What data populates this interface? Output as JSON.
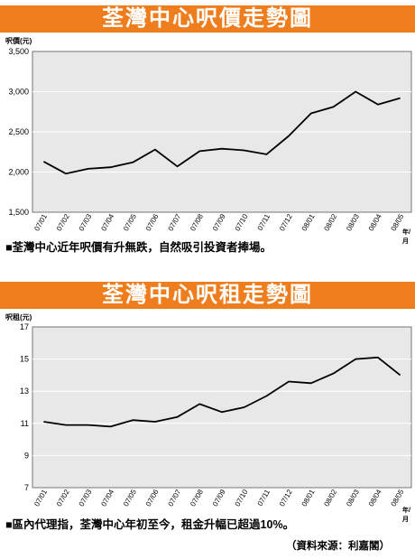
{
  "charts": [
    {
      "banner_title": "荃灣中心呎價走勢圖",
      "unit_label": "呎價(元)",
      "caption": "■荃灣中心近年呎價有升無跌，自然吸引投資者捧場。",
      "x_unit": "年/月"
    },
    {
      "banner_title": "荃灣中心呎租走勢圖",
      "unit_label": "呎租(元)",
      "caption": "■區內代理指，荃灣中心年初至今，租金升幅已超過10%。",
      "x_unit": "年/月"
    }
  ],
  "source": "（資料來源：利嘉閣）",
  "colors": {
    "banner": "#ee7d1d",
    "plot_bg": "#e8e8e8",
    "line": "#000000"
  },
  "chart_data": [
    {
      "type": "line",
      "title": "荃灣中心呎價走勢圖",
      "ylabel": "呎價(元)",
      "xlabel": "年/月",
      "categories": [
        "07/01",
        "07/02",
        "07/03",
        "07/04",
        "07/05",
        "07/06",
        "07/07",
        "07/08",
        "07/09",
        "07/10",
        "07/11",
        "07/12",
        "08/01",
        "08/02",
        "08/03",
        "08/04",
        "08/05"
      ],
      "series": [
        {
          "values": [
            2130,
            1980,
            2040,
            2060,
            2120,
            2280,
            2070,
            2260,
            2290,
            2270,
            2220,
            2450,
            2730,
            2810,
            3000,
            2840,
            2920
          ]
        }
      ],
      "yticks": [
        "1,500",
        "2,000",
        "2,500",
        "3,000",
        "3,500"
      ],
      "ylim": [
        1500,
        3500
      ],
      "grid": true
    },
    {
      "type": "line",
      "title": "荃灣中心呎租走勢圖",
      "ylabel": "呎租(元)",
      "xlabel": "年/月",
      "categories": [
        "07/01",
        "07/02",
        "07/03",
        "07/04",
        "07/05",
        "07/06",
        "07/07",
        "07/08",
        "07/09",
        "07/10",
        "07/11",
        "07/12",
        "08/01",
        "08/02",
        "08/03",
        "08/04",
        "08/05"
      ],
      "series": [
        {
          "values": [
            11.1,
            10.9,
            10.9,
            10.8,
            11.2,
            11.1,
            11.4,
            12.2,
            11.7,
            12.0,
            12.7,
            13.6,
            13.5,
            14.1,
            15.0,
            15.1,
            14.0
          ]
        }
      ],
      "yticks": [
        "7",
        "9",
        "11",
        "13",
        "15",
        "17"
      ],
      "ylim": [
        7,
        17
      ],
      "grid": true
    }
  ]
}
